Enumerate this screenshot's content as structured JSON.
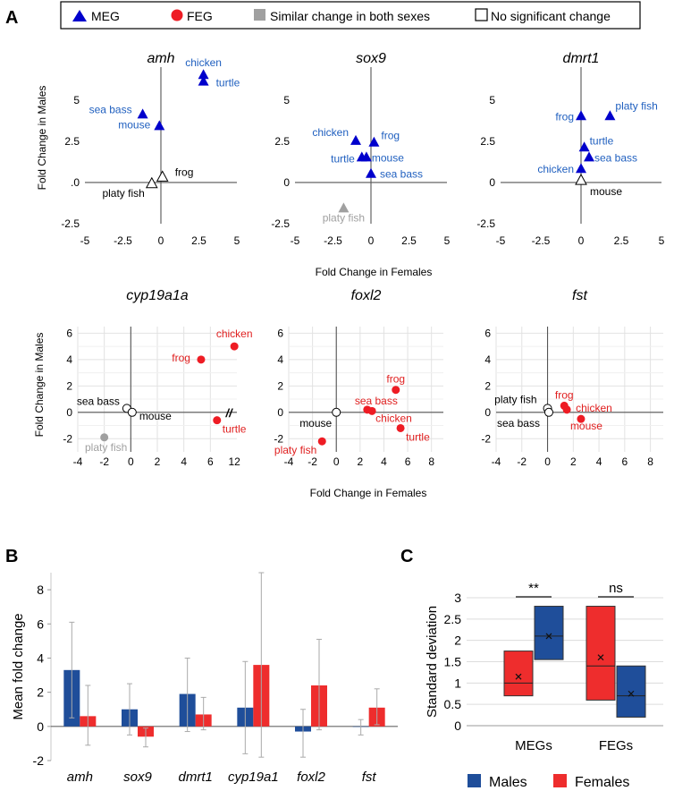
{
  "colors": {
    "meg": "#0000cc",
    "feg": "#ee1c24",
    "grey": "#a0a0a0",
    "males_bar": "#1f4e9a",
    "females_bar": "#ee2d2d",
    "label_blue": "#1f5fbf",
    "label_red": "#e02020"
  },
  "legend": {
    "meg": "MEG",
    "feg": "FEG",
    "similar": "Similar change in both sexes",
    "none": "No significant change"
  },
  "panel_labels": {
    "a": "A",
    "b": "B",
    "c": "C"
  },
  "axis_titles": {
    "x_top": "Fold Change in Females",
    "x_mid": "Fold Change in Females",
    "y_top": "Fold Change in Males",
    "y_mid": "Fold Change in Males"
  },
  "chart_data": [
    {
      "type": "scatter",
      "title": "amh",
      "xlabel": "Fold Change in Females",
      "ylabel": "Fold Change in Males",
      "xlim": [
        -5,
        5
      ],
      "ylim": [
        -2.5,
        7
      ],
      "xticks": [
        "-5",
        "-2.5",
        "0",
        "2.5",
        "5"
      ],
      "yticks": [
        ".0",
        "2.5",
        "5",
        "-2.5"
      ],
      "points": [
        {
          "name": "chicken",
          "x": 2.8,
          "y": 6.5,
          "cat": "MEG"
        },
        {
          "name": "turtle",
          "x": 2.8,
          "y": 6.1,
          "cat": "MEG"
        },
        {
          "name": "sea bass",
          "x": -1.2,
          "y": 4.1,
          "cat": "MEG"
        },
        {
          "name": "mouse",
          "x": -0.1,
          "y": 3.4,
          "cat": "MEG"
        },
        {
          "name": "frog",
          "x": 0.1,
          "y": 0.3,
          "cat": "none"
        },
        {
          "name": "platy fish",
          "x": -0.6,
          "y": -0.1,
          "cat": "none"
        }
      ]
    },
    {
      "type": "scatter",
      "title": "sox9",
      "xlabel": "Fold Change in Females",
      "ylabel": "Fold Change in Males",
      "xlim": [
        -5,
        5
      ],
      "ylim": [
        -2.5,
        7
      ],
      "xticks": [
        "-5",
        "-2.5",
        "0",
        "2.5",
        "5"
      ],
      "yticks": [
        "0",
        "2.5",
        "5",
        "-2.5"
      ],
      "points": [
        {
          "name": "chicken",
          "x": -1.0,
          "y": 2.5,
          "cat": "MEG"
        },
        {
          "name": "frog",
          "x": 0.2,
          "y": 2.4,
          "cat": "MEG"
        },
        {
          "name": "turtle",
          "x": -0.6,
          "y": 1.5,
          "cat": "MEG"
        },
        {
          "name": "mouse",
          "x": -0.3,
          "y": 1.5,
          "cat": "MEG"
        },
        {
          "name": "sea bass",
          "x": 0.0,
          "y": 0.5,
          "cat": "MEG"
        },
        {
          "name": "platy fish",
          "x": -1.8,
          "y": -1.6,
          "cat": "similar"
        }
      ]
    },
    {
      "type": "scatter",
      "title": "dmrt1",
      "xlabel": "Fold Change in Females",
      "ylabel": "Fold Change in Males",
      "xlim": [
        -5,
        5
      ],
      "ylim": [
        -2.5,
        7
      ],
      "xticks": [
        "-5",
        "-2.5",
        "0",
        "2.5",
        "5"
      ],
      "yticks": [
        "0",
        "2.5",
        "5",
        "-2.5"
      ],
      "points": [
        {
          "name": "frog",
          "x": 0.0,
          "y": 4.0,
          "cat": "MEG"
        },
        {
          "name": "platy fish",
          "x": 1.8,
          "y": 4.0,
          "cat": "MEG"
        },
        {
          "name": "turtle",
          "x": 0.2,
          "y": 2.1,
          "cat": "MEG"
        },
        {
          "name": "sea bass",
          "x": 0.5,
          "y": 1.5,
          "cat": "MEG"
        },
        {
          "name": "chicken",
          "x": 0.0,
          "y": 0.8,
          "cat": "MEG"
        },
        {
          "name": "mouse",
          "x": 0.0,
          "y": 0.1,
          "cat": "none"
        }
      ]
    },
    {
      "type": "scatter",
      "title": "cyp19a1a",
      "xlabel": "Fold Change in Females",
      "ylabel": "Fold Change in Males",
      "xlim": [
        -4,
        8
      ],
      "ylim": [
        -3,
        6.5
      ],
      "xticks": [
        "-4",
        "-2",
        "0",
        "2",
        "4",
        "6",
        "12"
      ],
      "yticks": [
        "6",
        "4",
        "2",
        "0",
        "-2"
      ],
      "axis_break": "//",
      "points": [
        {
          "name": "chicken",
          "x": 12,
          "y": 5.0,
          "cat": "FEG"
        },
        {
          "name": "frog",
          "x": 5.3,
          "y": 4.0,
          "cat": "FEG"
        },
        {
          "name": "turtle",
          "x": 6.5,
          "y": -0.6,
          "cat": "FEG"
        },
        {
          "name": "sea bass",
          "x": -0.3,
          "y": 0.3,
          "cat": "none"
        },
        {
          "name": "mouse",
          "x": 0.1,
          "y": 0.0,
          "cat": "none"
        },
        {
          "name": "platy fish",
          "x": -2.0,
          "y": -1.9,
          "cat": "similar"
        }
      ]
    },
    {
      "type": "scatter",
      "title": "foxl2",
      "xlabel": "Fold Change in Females",
      "ylabel": "Fold Change in Males",
      "xlim": [
        -4,
        9
      ],
      "ylim": [
        -3,
        6.5
      ],
      "xticks": [
        "-4",
        "-2",
        "0",
        "2",
        "4",
        "6",
        "8"
      ],
      "yticks": [
        "6",
        "4",
        "2",
        "0",
        "-2"
      ],
      "points": [
        {
          "name": "frog",
          "x": 5.0,
          "y": 1.7,
          "cat": "FEG"
        },
        {
          "name": "sea bass",
          "x": 2.6,
          "y": 0.2,
          "cat": "FEG"
        },
        {
          "name": "chicken",
          "x": 3.0,
          "y": 0.1,
          "cat": "FEG"
        },
        {
          "name": "turtle",
          "x": 5.4,
          "y": -1.2,
          "cat": "FEG"
        },
        {
          "name": "mouse",
          "x": 0.0,
          "y": 0.0,
          "cat": "none"
        },
        {
          "name": "platy fish",
          "x": -1.2,
          "y": -2.2,
          "cat": "FEG"
        }
      ]
    },
    {
      "type": "scatter",
      "title": "fst",
      "xlabel": "Fold Change in Females",
      "ylabel": "Fold Change in Males",
      "xlim": [
        -4,
        9
      ],
      "ylim": [
        -3,
        6.5
      ],
      "xticks": [
        "-4",
        "-2",
        "0",
        "2",
        "4",
        "6",
        "8"
      ],
      "yticks": [
        "6",
        "4",
        "2",
        "0",
        "-2"
      ],
      "points": [
        {
          "name": "frog",
          "x": 1.3,
          "y": 0.5,
          "cat": "FEG"
        },
        {
          "name": "chicken",
          "x": 1.5,
          "y": 0.2,
          "cat": "FEG"
        },
        {
          "name": "mouse",
          "x": 2.6,
          "y": -0.5,
          "cat": "FEG"
        },
        {
          "name": "platy fish",
          "x": 0.0,
          "y": 0.3,
          "cat": "none"
        },
        {
          "name": "sea bass",
          "x": 0.1,
          "y": 0.0,
          "cat": "none"
        }
      ]
    },
    {
      "type": "bar",
      "title": "",
      "xlabel": "",
      "ylabel": "Mean fold change",
      "ylim": [
        -2,
        9
      ],
      "yticks": [
        "-2",
        "0",
        "2",
        "4",
        "6",
        "8"
      ],
      "categories": [
        "amh",
        "sox9",
        "dmrt1",
        "cyp19a1",
        "foxl2",
        "fst"
      ],
      "series": [
        {
          "name": "Males",
          "values": [
            3.3,
            1.0,
            1.9,
            1.1,
            -0.3,
            0.0
          ],
          "err_low": [
            0.5,
            -0.5,
            -0.3,
            -1.6,
            -1.8,
            -0.5
          ],
          "err_high": [
            6.1,
            2.5,
            4.0,
            3.8,
            1.0,
            0.4
          ]
        },
        {
          "name": "Females",
          "values": [
            0.6,
            -0.6,
            0.7,
            3.6,
            2.4,
            1.1
          ],
          "err_low": [
            -1.1,
            -1.2,
            -0.2,
            -1.8,
            -0.2,
            0.1
          ],
          "err_high": [
            2.4,
            -0.1,
            1.7,
            9.0,
            5.1,
            2.2
          ]
        }
      ]
    },
    {
      "type": "box",
      "title": "",
      "xlabel": "",
      "ylabel": "Standard deviation",
      "ylim": [
        0,
        3
      ],
      "yticks": [
        "0",
        "0.5",
        "1",
        "1.5",
        "2",
        "2.5",
        "3"
      ],
      "categories": [
        "MEGs",
        "FEGs"
      ],
      "boxes": [
        {
          "group": "MEGs",
          "series": "Females",
          "q1": 0.7,
          "median": 1.0,
          "q3": 1.75,
          "mean": 1.15
        },
        {
          "group": "MEGs",
          "series": "Males",
          "q1": 1.55,
          "median": 2.1,
          "q3": 2.8,
          "mean": 2.1
        },
        {
          "group": "FEGs",
          "series": "Females",
          "q1": 0.6,
          "median": 1.4,
          "q3": 2.8,
          "mean": 1.6
        },
        {
          "group": "FEGs",
          "series": "Males",
          "q1": 0.2,
          "median": 0.7,
          "q3": 1.4,
          "mean": 0.75
        }
      ],
      "significance": [
        {
          "group": "MEGs",
          "label": "**"
        },
        {
          "group": "FEGs",
          "label": "ns"
        }
      ],
      "legend": [
        "Males",
        "Females"
      ]
    }
  ]
}
